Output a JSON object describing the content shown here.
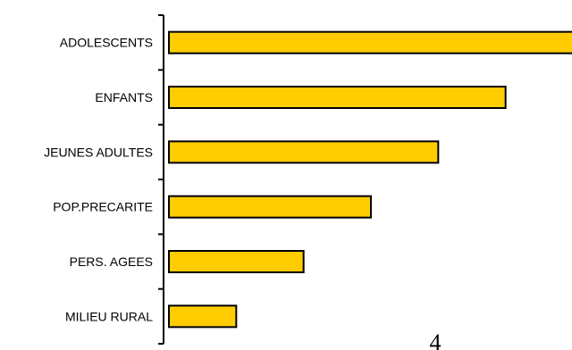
{
  "chart_data": {
    "type": "bar",
    "orientation": "horizontal",
    "categories": [
      "ADOLESCENTS",
      "ENFANTS",
      "JEUNES ADULTES",
      "POP.PRECARITE",
      "PERS. AGEES",
      "MILIEU RURAL"
    ],
    "values": [
      6,
      5,
      4,
      3,
      2,
      1
    ],
    "xlim": [
      0,
      6
    ],
    "title": "",
    "xlabel": "",
    "ylabel": "",
    "grid": false,
    "bar_color": "#FFCC00",
    "bar_edge_color": "#000000"
  },
  "page_number": "4"
}
